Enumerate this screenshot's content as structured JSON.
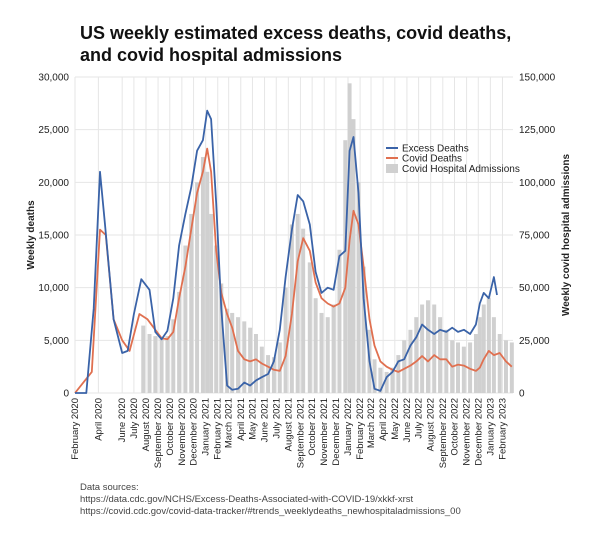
{
  "chart_data": {
    "type": "line",
    "title_lines": [
      "US weekly estimated excess deaths, covid deaths,",
      "and covid hospital admissions"
    ],
    "ylabel_left": "Weekly deaths",
    "ylabel_right": "Weekly covid hospital admissions",
    "ylim_left": [
      0,
      30000
    ],
    "ylim_right": [
      0,
      150000
    ],
    "y_ticks_left": [
      "0",
      "5,000",
      "10,000",
      "15,000",
      "20,000",
      "25,000",
      "30,000"
    ],
    "y_ticks_right": [
      "0",
      "25,000",
      "50,000",
      "75,000",
      "100,000",
      "125,000",
      "150,000"
    ],
    "x_range": [
      "2020-02-01",
      "2023-02-28"
    ],
    "x_tick_labels": [
      "February 2020",
      "April 2020",
      "June 2020",
      "August 2020",
      "October 2020",
      "December 2020",
      "February 2021",
      "April 2021",
      "June 2021",
      "August 2021",
      "October 2021",
      "December 2021",
      "February 2022",
      "April 2022",
      "June 2022",
      "August 2022",
      "October 2022",
      "December 2022",
      "February 2023",
      "July 2020",
      "September 2020",
      "November 2020",
      "January 2021",
      "March 2021",
      "May 2021",
      "July 2021",
      "September 2021",
      "November 2021",
      "January 2022",
      "March 2022",
      "May 2022",
      "July 2022",
      "September 2022",
      "November 2022",
      "January 2023"
    ],
    "x_tick_dates": [
      "2020-02",
      "2020-04",
      "2020-06",
      "2020-08",
      "2020-10",
      "2020-12",
      "2021-02",
      "2021-04",
      "2021-06",
      "2021-08",
      "2021-10",
      "2021-12",
      "2022-02",
      "2022-04",
      "2022-06",
      "2022-08",
      "2022-10",
      "2022-12",
      "2023-02",
      "2020-07",
      "2020-09",
      "2020-11",
      "2021-01",
      "2021-03",
      "2021-05",
      "2021-07",
      "2021-09",
      "2021-11",
      "2022-01",
      "2022-03",
      "2022-05",
      "2022-07",
      "2022-09",
      "2022-11",
      "2023-01"
    ],
    "legend_position": "right",
    "grid": true,
    "colors": {
      "excess": "#3a63a8",
      "covid": "#e07050",
      "hospital": "#d0d0d0",
      "grid": "#e6e6e6"
    },
    "series": [
      {
        "name": "Excess Deaths",
        "axis": "left",
        "kind": "line",
        "x": [
          "2020-02-01",
          "2020-03-01",
          "2020-03-20",
          "2020-04-05",
          "2020-04-18",
          "2020-05-10",
          "2020-06-01",
          "2020-06-15",
          "2020-07-01",
          "2020-07-20",
          "2020-08-10",
          "2020-08-25",
          "2020-09-10",
          "2020-09-25",
          "2020-10-10",
          "2020-10-25",
          "2020-11-10",
          "2020-11-25",
          "2020-12-10",
          "2020-12-25",
          "2021-01-05",
          "2021-01-15",
          "2021-01-28",
          "2021-02-10",
          "2021-02-25",
          "2021-03-10",
          "2021-03-25",
          "2021-04-10",
          "2021-04-25",
          "2021-05-10",
          "2021-05-25",
          "2021-06-10",
          "2021-06-25",
          "2021-07-10",
          "2021-07-25",
          "2021-08-10",
          "2021-08-25",
          "2021-09-08",
          "2021-09-25",
          "2021-10-10",
          "2021-10-25",
          "2021-11-10",
          "2021-11-25",
          "2021-12-10",
          "2021-12-25",
          "2022-01-05",
          "2022-01-15",
          "2022-01-28",
          "2022-02-10",
          "2022-02-25",
          "2022-03-10",
          "2022-03-25",
          "2022-04-10",
          "2022-04-25",
          "2022-05-10",
          "2022-05-25",
          "2022-06-10",
          "2022-06-25",
          "2022-07-10",
          "2022-07-25",
          "2022-08-10",
          "2022-08-25",
          "2022-09-10",
          "2022-09-25",
          "2022-10-10",
          "2022-10-25",
          "2022-11-10",
          "2022-11-25",
          "2022-12-05",
          "2022-12-15",
          "2022-12-28",
          "2023-01-10",
          "2023-01-18"
        ],
        "values": [
          0,
          0,
          8000,
          21000,
          16000,
          7000,
          3800,
          4000,
          7500,
          10800,
          9800,
          5800,
          5100,
          5900,
          9000,
          14000,
          17000,
          19500,
          23000,
          24000,
          26800,
          26000,
          18000,
          8000,
          700,
          300,
          400,
          1000,
          700,
          1200,
          1500,
          1800,
          3000,
          6000,
          11000,
          15500,
          18800,
          18200,
          16000,
          11500,
          9500,
          10000,
          9800,
          13000,
          13500,
          23000,
          24300,
          19000,
          9000,
          3000,
          400,
          200,
          1500,
          2000,
          3000,
          3200,
          4500,
          5300,
          6500,
          6000,
          5600,
          6000,
          5800,
          6200,
          5800,
          6000,
          5600,
          6500,
          8500,
          9500,
          9000,
          11000,
          9300
        ]
      },
      {
        "name": "Covid Deaths",
        "axis": "left",
        "kind": "line",
        "x": [
          "2020-02-01",
          "2020-03-15",
          "2020-04-05",
          "2020-04-20",
          "2020-05-10",
          "2020-06-01",
          "2020-06-20",
          "2020-07-15",
          "2020-08-05",
          "2020-08-25",
          "2020-09-10",
          "2020-09-25",
          "2020-10-10",
          "2020-10-25",
          "2020-11-10",
          "2020-11-25",
          "2020-12-10",
          "2020-12-25",
          "2021-01-05",
          "2021-01-15",
          "2021-01-28",
          "2021-02-10",
          "2021-02-25",
          "2021-03-10",
          "2021-03-25",
          "2021-04-10",
          "2021-04-25",
          "2021-05-10",
          "2021-05-25",
          "2021-06-10",
          "2021-06-25",
          "2021-07-10",
          "2021-07-25",
          "2021-08-10",
          "2021-08-25",
          "2021-09-08",
          "2021-09-25",
          "2021-10-10",
          "2021-10-25",
          "2021-11-10",
          "2021-11-25",
          "2021-12-10",
          "2021-12-25",
          "2022-01-05",
          "2022-01-15",
          "2022-01-28",
          "2022-02-10",
          "2022-02-25",
          "2022-03-10",
          "2022-03-25",
          "2022-04-10",
          "2022-04-25",
          "2022-05-10",
          "2022-05-25",
          "2022-06-10",
          "2022-06-25",
          "2022-07-10",
          "2022-07-25",
          "2022-08-10",
          "2022-08-25",
          "2022-09-10",
          "2022-09-25",
          "2022-10-10",
          "2022-10-25",
          "2022-11-10",
          "2022-11-25",
          "2022-12-05",
          "2022-12-15",
          "2022-12-28",
          "2023-01-10",
          "2023-01-25",
          "2023-02-10",
          "2023-02-25"
        ],
        "values": [
          0,
          2000,
          15500,
          15000,
          7000,
          5000,
          4000,
          7500,
          7000,
          6000,
          5200,
          5100,
          5800,
          9000,
          12000,
          15500,
          19000,
          21000,
          23200,
          21000,
          13500,
          9500,
          7500,
          6200,
          4000,
          3200,
          3000,
          3200,
          2800,
          2500,
          2200,
          2100,
          3500,
          7500,
          12500,
          14700,
          13500,
          10500,
          9000,
          8500,
          8200,
          8500,
          10000,
          14500,
          17300,
          16000,
          12000,
          7000,
          4500,
          3000,
          2500,
          2200,
          2000,
          2300,
          2600,
          3000,
          3500,
          3000,
          3600,
          3200,
          3200,
          2500,
          2700,
          2600,
          2300,
          2100,
          2400,
          3200,
          4000,
          3600,
          3800,
          3000,
          2500
        ]
      },
      {
        "name": "Covid Hospital Admissions",
        "axis": "right",
        "kind": "bar",
        "x": [
          "2020-07-25",
          "2020-08-10",
          "2020-08-25",
          "2020-09-10",
          "2020-09-25",
          "2020-10-10",
          "2020-10-25",
          "2020-11-10",
          "2020-11-25",
          "2020-12-10",
          "2020-12-25",
          "2021-01-05",
          "2021-01-15",
          "2021-01-28",
          "2021-02-10",
          "2021-02-25",
          "2021-03-10",
          "2021-03-25",
          "2021-04-10",
          "2021-04-25",
          "2021-05-10",
          "2021-05-25",
          "2021-06-10",
          "2021-06-25",
          "2021-07-10",
          "2021-07-25",
          "2021-08-10",
          "2021-08-25",
          "2021-09-08",
          "2021-09-25",
          "2021-10-10",
          "2021-10-25",
          "2021-11-10",
          "2021-11-25",
          "2021-12-10",
          "2021-12-25",
          "2022-01-05",
          "2022-01-15",
          "2022-01-28",
          "2022-02-10",
          "2022-02-25",
          "2022-03-10",
          "2022-03-25",
          "2022-04-10",
          "2022-04-25",
          "2022-05-10",
          "2022-05-25",
          "2022-06-10",
          "2022-06-25",
          "2022-07-10",
          "2022-07-25",
          "2022-08-10",
          "2022-08-25",
          "2022-09-10",
          "2022-09-25",
          "2022-10-10",
          "2022-10-25",
          "2022-11-10",
          "2022-11-25",
          "2022-12-05",
          "2022-12-15",
          "2022-12-28",
          "2023-01-10",
          "2023-01-25",
          "2023-02-10",
          "2023-02-25"
        ],
        "values": [
          32000,
          28000,
          27000,
          26000,
          27000,
          35000,
          48000,
          70000,
          85000,
          100000,
          112000,
          105000,
          85000,
          70000,
          52000,
          40000,
          38000,
          36000,
          34000,
          31000,
          28000,
          22000,
          18000,
          17000,
          24000,
          50000,
          80000,
          85000,
          78000,
          62000,
          45000,
          38000,
          36000,
          42000,
          68000,
          120000,
          147000,
          130000,
          100000,
          60000,
          30000,
          16000,
          12000,
          10000,
          12000,
          18000,
          25000,
          30000,
          36000,
          42000,
          44000,
          42000,
          36000,
          30000,
          25000,
          24000,
          22000,
          24000,
          28000,
          36000,
          42000,
          45000,
          36000,
          28000,
          25000,
          24000
        ]
      }
    ]
  },
  "sources": {
    "heading": "Data sources:",
    "line1": "https://data.cdc.gov/NCHS/Excess-Deaths-Associated-with-COVID-19/xkkf-xrst",
    "line2": "https://covid.cdc.gov/covid-data-tracker/#trends_weeklydeaths_newhospitaladmissions_00"
  }
}
